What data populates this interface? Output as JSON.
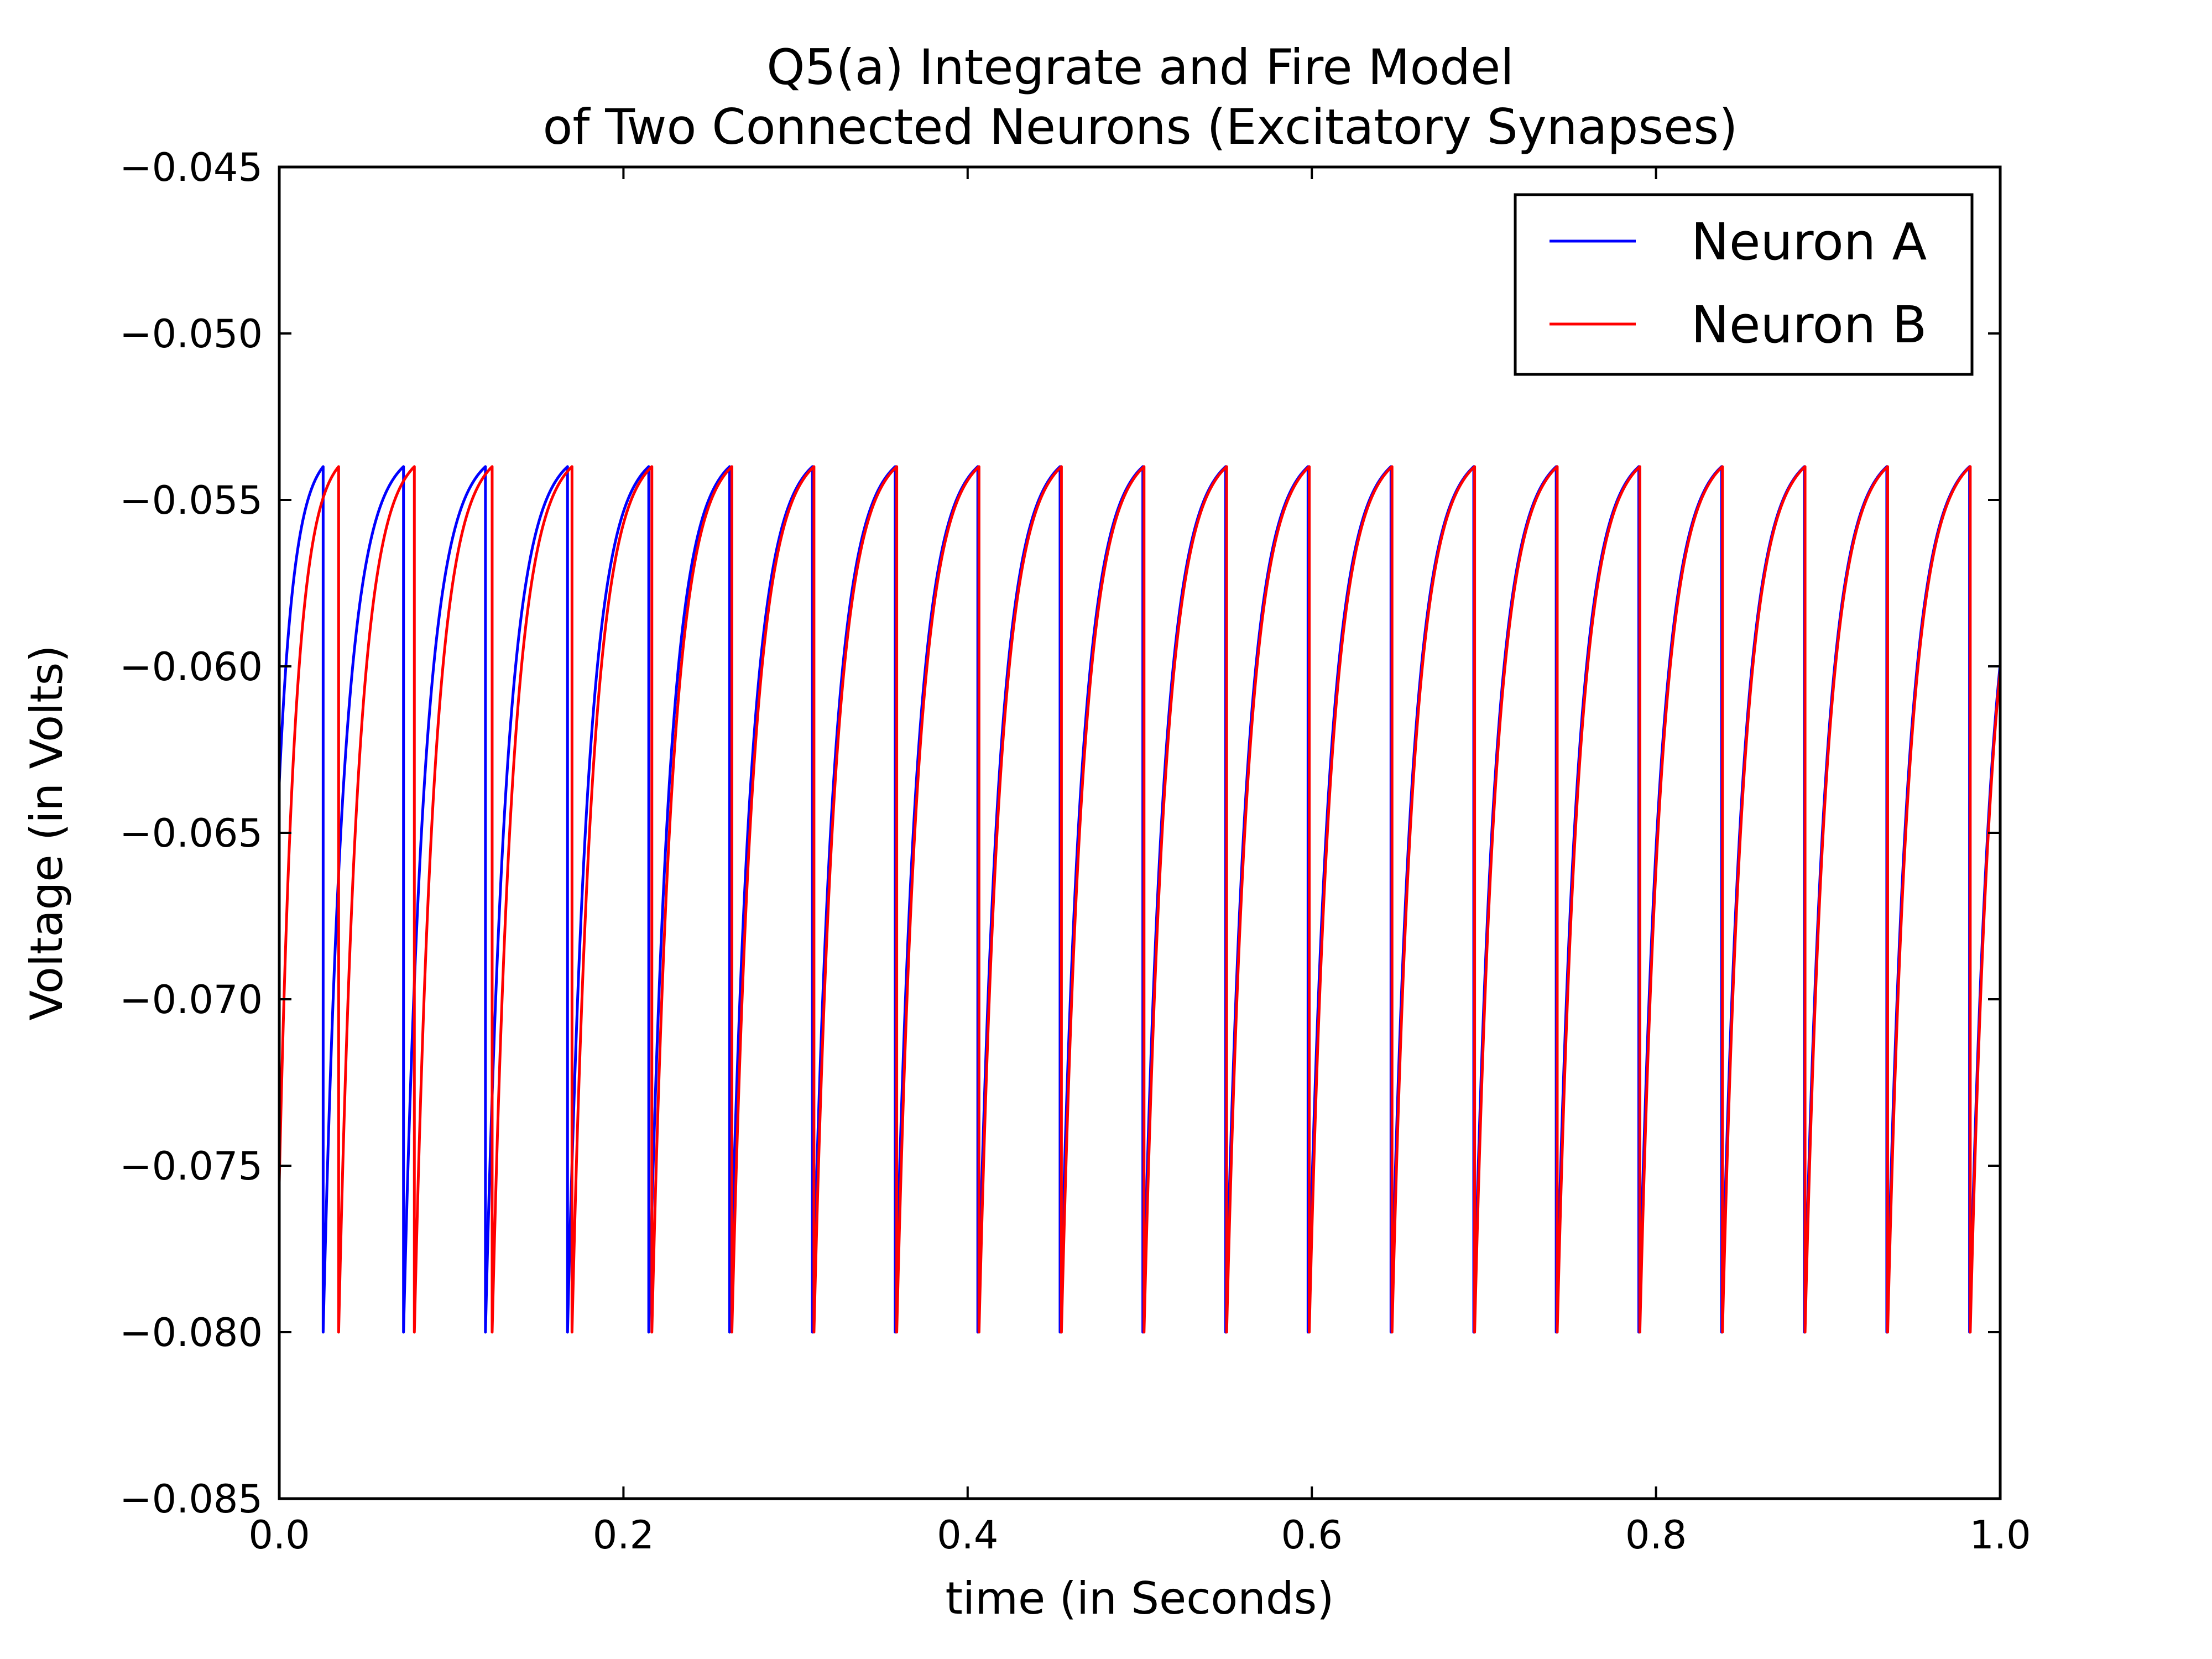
{
  "chart_data": {
    "type": "line",
    "title": [
      "Q5(a) Integrate and Fire Model",
      "of Two Connected Neurons (Excitatory Synapses)"
    ],
    "xlabel": "time (in Seconds)",
    "ylabel": "Voltage (in Volts)",
    "xlim": [
      0.0,
      1.0
    ],
    "ylim": [
      -0.085,
      -0.045
    ],
    "xticks": [
      0.0,
      0.2,
      0.4,
      0.6,
      0.8,
      1.0
    ],
    "xtick_labels": [
      "0.0",
      "0.2",
      "0.4",
      "0.6",
      "0.8",
      "1.0"
    ],
    "yticks": [
      -0.085,
      -0.08,
      -0.075,
      -0.07,
      -0.065,
      -0.06,
      -0.055,
      -0.05,
      -0.045
    ],
    "ytick_labels": [
      "−0.085",
      "−0.080",
      "−0.075",
      "−0.070",
      "−0.065",
      "−0.060",
      "−0.055",
      "−0.050",
      "−0.045"
    ],
    "grid": false,
    "legend_position": "top-right",
    "v_reset": -0.08,
    "v_threshold": -0.054,
    "series": [
      {
        "name": "Neuron A",
        "color": "#0000ff",
        "v0": -0.0635,
        "spike_times": [
          0.0255,
          0.0722,
          0.1198,
          0.1675,
          0.2147,
          0.2617,
          0.3098,
          0.3579,
          0.4059,
          0.4537,
          0.5018,
          0.5499,
          0.5978,
          0.646,
          0.6941,
          0.742,
          0.79,
          0.8381,
          0.8862,
          0.9341,
          0.9822
        ]
      },
      {
        "name": "Neuron B",
        "color": "#ff0000",
        "v0": -0.0755,
        "spike_times": [
          0.0345,
          0.0785,
          0.1237,
          0.1701,
          0.2165,
          0.263,
          0.3107,
          0.3588,
          0.4066,
          0.4545,
          0.5025,
          0.5505,
          0.5985,
          0.6466,
          0.6946,
          0.7426,
          0.7906,
          0.8386,
          0.8866,
          0.9346,
          0.9826
        ]
      }
    ]
  }
}
